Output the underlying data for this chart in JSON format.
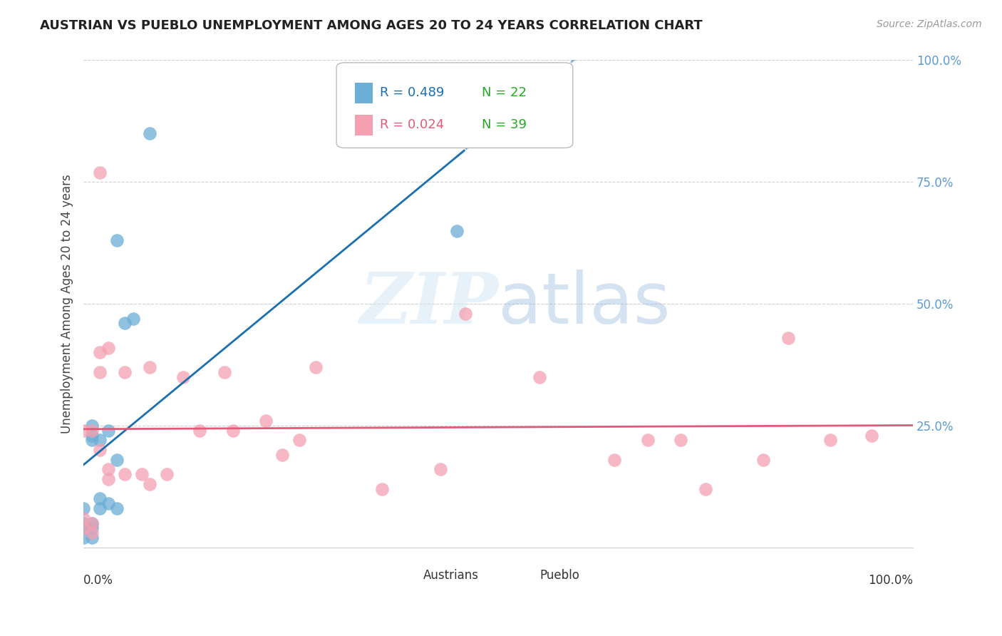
{
  "title": "AUSTRIAN VS PUEBLO UNEMPLOYMENT AMONG AGES 20 TO 24 YEARS CORRELATION CHART",
  "source": "Source: ZipAtlas.com",
  "ylabel": "Unemployment Among Ages 20 to 24 years",
  "legend_blue_r": "R = 0.489",
  "legend_blue_n": "N = 22",
  "legend_pink_r": "R = 0.024",
  "legend_pink_n": "N = 39",
  "legend_label_blue": "Austrians",
  "legend_label_pink": "Pueblo",
  "blue_color": "#6baed6",
  "pink_color": "#f4a0b0",
  "blue_line_color": "#1a6faf",
  "pink_line_color": "#e05a7a",
  "right_axis_color": "#5b9bd5",
  "n_color": "#22aa22",
  "austrians_x": [
    0.0,
    0.0,
    0.0,
    0.0,
    0.01,
    0.01,
    0.01,
    0.01,
    0.01,
    0.01,
    0.02,
    0.02,
    0.02,
    0.03,
    0.03,
    0.04,
    0.04,
    0.04,
    0.05,
    0.06,
    0.08,
    0.45
  ],
  "austrians_y": [
    0.02,
    0.04,
    0.05,
    0.08,
    0.02,
    0.04,
    0.05,
    0.22,
    0.23,
    0.25,
    0.08,
    0.1,
    0.22,
    0.09,
    0.24,
    0.08,
    0.18,
    0.63,
    0.46,
    0.47,
    0.85,
    0.65
  ],
  "pueblo_x": [
    0.0,
    0.0,
    0.0,
    0.01,
    0.01,
    0.01,
    0.02,
    0.02,
    0.02,
    0.02,
    0.03,
    0.03,
    0.03,
    0.05,
    0.05,
    0.07,
    0.08,
    0.08,
    0.1,
    0.12,
    0.14,
    0.17,
    0.18,
    0.22,
    0.24,
    0.26,
    0.28,
    0.36,
    0.43,
    0.46,
    0.55,
    0.64,
    0.68,
    0.72,
    0.75,
    0.82,
    0.85,
    0.9,
    0.95
  ],
  "pueblo_y": [
    0.04,
    0.06,
    0.24,
    0.03,
    0.05,
    0.24,
    0.2,
    0.36,
    0.4,
    0.77,
    0.14,
    0.16,
    0.41,
    0.15,
    0.36,
    0.15,
    0.13,
    0.37,
    0.15,
    0.35,
    0.24,
    0.36,
    0.24,
    0.26,
    0.19,
    0.22,
    0.37,
    0.12,
    0.16,
    0.48,
    0.35,
    0.18,
    0.22,
    0.22,
    0.12,
    0.18,
    0.43,
    0.22,
    0.23
  ],
  "xlim": [
    0.0,
    1.0
  ],
  "ylim": [
    0.0,
    1.0
  ],
  "right_yticks": [
    0.0,
    0.25,
    0.5,
    0.75,
    1.0
  ],
  "right_yticklabels": [
    "",
    "25.0%",
    "50.0%",
    "75.0%",
    "100.0%"
  ],
  "gridline_color": "#d0d0d0",
  "background_color": "#ffffff"
}
